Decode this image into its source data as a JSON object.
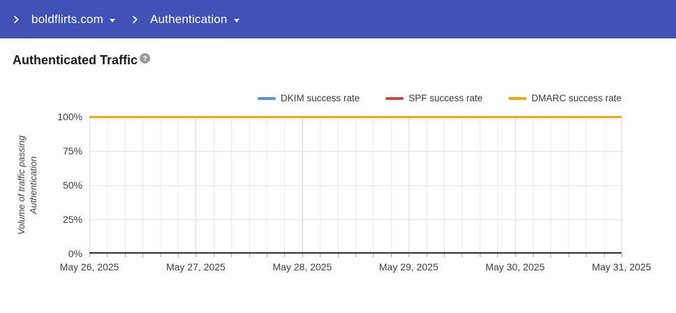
{
  "header": {
    "breadcrumbs": [
      {
        "label": "boldflirts.com"
      },
      {
        "label": "Authentication"
      }
    ]
  },
  "main": {
    "title": "Authenticated Traffic",
    "help_icon_glyph": "?"
  },
  "chart_data": {
    "type": "line",
    "title": "Authenticated Traffic",
    "ylabel": "Volume of traffic passing Authentication",
    "xlabel": "",
    "ylim": [
      0,
      100
    ],
    "y_tick_values": [
      100,
      75,
      50,
      25,
      0
    ],
    "y_tick_labels": [
      "100%",
      "75%",
      "50%",
      "25%",
      "0%"
    ],
    "x_tick_labels": [
      "May 26, 2025",
      "May 27, 2025",
      "May 28, 2025",
      "May 29, 2025",
      "May 30, 2025",
      "May 31, 2025"
    ],
    "minor_gridlines_per_day": 6,
    "grid": true,
    "legend_position": "top-right",
    "series": [
      {
        "name": "DKIM success rate",
        "color": "#5c8ef0",
        "values": [
          100,
          100,
          100,
          100,
          100,
          100
        ]
      },
      {
        "name": "SPF success rate",
        "color": "#d6453a",
        "values": [
          100,
          100,
          100,
          100,
          100,
          100
        ]
      },
      {
        "name": "DMARC success rate",
        "color": "#f0a412",
        "values": [
          100,
          100,
          100,
          100,
          100,
          100
        ]
      }
    ]
  },
  "theme": {
    "header_bg": "#4052b5",
    "header_text": "#ffffff",
    "help_icon_bg": "#9c9c9c",
    "grid_minor": "#ececec",
    "grid_major": "#d8d8d8",
    "axis_line": "#2f2f2f"
  }
}
